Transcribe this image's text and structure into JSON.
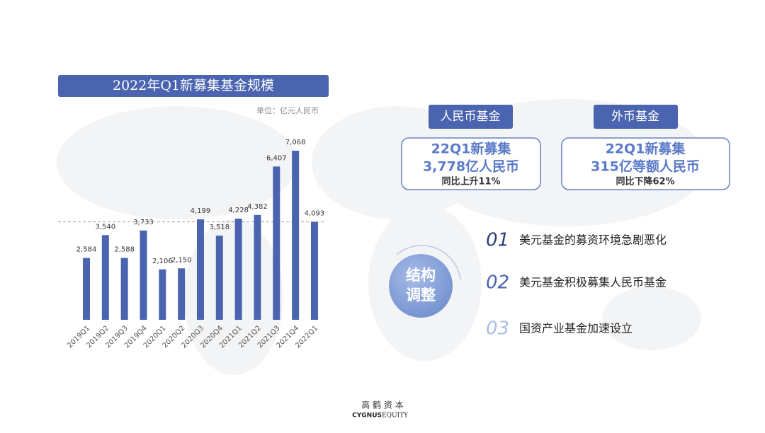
{
  "chart_data": {
    "type": "bar",
    "title": "2022年Q1新募集基金规模",
    "subtitle": "单位：亿元人民币",
    "categories": [
      "2019Q1",
      "2019Q2",
      "2019Q3",
      "2019Q4",
      "2020Q1",
      "2020Q2",
      "2020Q3",
      "2020Q4",
      "2021Q1",
      "2021Q2",
      "2021Q3",
      "2021Q4",
      "2022Q1"
    ],
    "values": [
      2584,
      3540,
      2588,
      3733,
      2106,
      2150,
      4199,
      3518,
      4228,
      4382,
      6407,
      7068,
      4093
    ],
    "value_labels": [
      "2,584",
      "3,540",
      "2,588",
      "3,733",
      "2,106",
      "2,150",
      "4,199",
      "3,518",
      "4,228",
      "4,382",
      "6,407",
      "7,068",
      "4,093"
    ],
    "color": "#4a64b0"
  },
  "cards": [
    {
      "tab": "人民币基金",
      "line1": "22Q1新募集",
      "line2": "3,778亿人民币",
      "line3": "同比上升11%"
    },
    {
      "tab": "外币基金",
      "line1": "22Q1新募集",
      "line2": "315亿等额人民币",
      "line3": "同比下降62%"
    }
  ],
  "circle": {
    "line1": "结构",
    "line2": "调整"
  },
  "points": [
    {
      "num": "01",
      "text": "美元基金的募资环境急剧恶化"
    },
    {
      "num": "02",
      "text": "美元基金积极募集人民币基金"
    },
    {
      "num": "03",
      "text": "国资产业基金加速设立"
    }
  ],
  "footer": {
    "cn": "高 鹤 资 本",
    "en1": "CYGNUS",
    "en2": "EQUITY"
  }
}
